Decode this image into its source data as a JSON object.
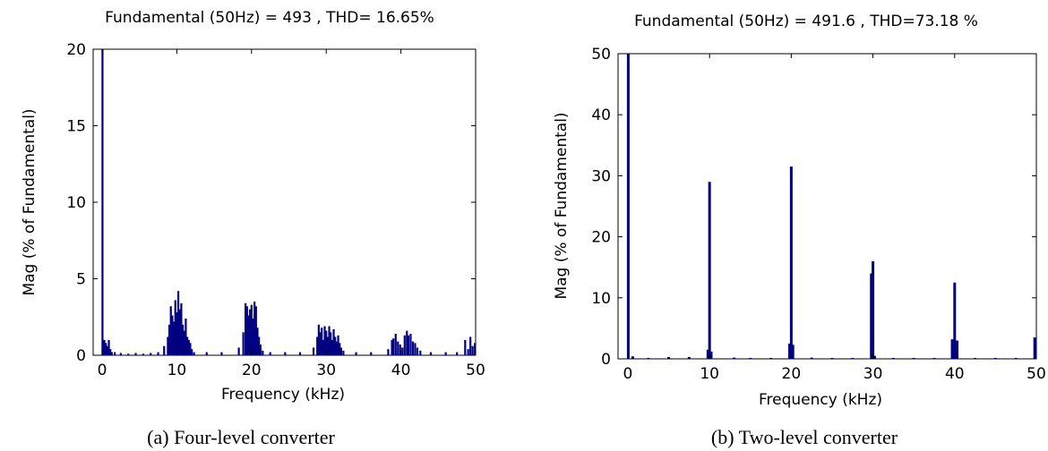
{
  "chart_data": [
    {
      "type": "bar",
      "title": "Fundamental (50Hz) = 493 , THD= 16.65%",
      "xlabel": "Frequency (kHz)",
      "ylabel": "Mag (% of Fundamental)",
      "caption": "(a) Four-level converter",
      "xlim": [
        -1.2,
        50
      ],
      "ylim": [
        0,
        20
      ],
      "xticks": [
        0,
        10,
        20,
        30,
        40,
        50
      ],
      "yticks": [
        0,
        5,
        10,
        15,
        20
      ],
      "grid": false,
      "color": "#000080",
      "series": [
        {
          "x": [
            0.05,
            0.3,
            0.5,
            0.7,
            0.9,
            1.1,
            1.3,
            1.7,
            2.5,
            3.5,
            4.5,
            5.5,
            6.5,
            7.5,
            8.3,
            8.8,
            9.0,
            9.2,
            9.4,
            9.6,
            9.8,
            10.0,
            10.2,
            10.4,
            10.6,
            10.8,
            11.0,
            11.2,
            11.4,
            11.6,
            11.8,
            12.0,
            12.3,
            14.0,
            16.0,
            18.3,
            18.9,
            19.2,
            19.4,
            19.6,
            19.8,
            20.0,
            20.2,
            20.4,
            20.6,
            20.8,
            21.0,
            21.2,
            21.5,
            22.5,
            24.5,
            26.5,
            28.3,
            28.8,
            29.0,
            29.2,
            29.4,
            29.6,
            29.8,
            30.0,
            30.2,
            30.4,
            30.6,
            30.8,
            31.0,
            31.2,
            31.4,
            31.6,
            31.8,
            32.0,
            32.3,
            34.0,
            36.0,
            38.3,
            38.8,
            39.0,
            39.3,
            39.6,
            39.9,
            40.2,
            40.5,
            40.8,
            41.0,
            41.3,
            41.6,
            41.9,
            42.2,
            42.6,
            44.0,
            46.0,
            47.5,
            48.6,
            49.0,
            49.3,
            49.6,
            49.9
          ],
          "values": [
            20,
            1.0,
            0.8,
            0.6,
            1.0,
            0.4,
            0.2,
            0.2,
            0.15,
            0.1,
            0.15,
            0.1,
            0.15,
            0.2,
            0.6,
            1.2,
            2.0,
            3.2,
            2.6,
            2.2,
            3.6,
            2.8,
            4.2,
            3.0,
            3.4,
            2.0,
            1.6,
            2.4,
            1.2,
            1.0,
            0.8,
            0.4,
            0.2,
            0.2,
            0.2,
            0.5,
            1.5,
            3.4,
            3.2,
            2.6,
            3.0,
            3.3,
            2.4,
            3.5,
            3.2,
            1.8,
            1.2,
            0.7,
            0.3,
            0.2,
            0.2,
            0.2,
            0.5,
            1.2,
            2.0,
            1.5,
            1.8,
            1.0,
            1.9,
            1.6,
            1.2,
            1.9,
            1.5,
            1.0,
            1.7,
            1.2,
            0.9,
            1.3,
            0.8,
            0.5,
            0.3,
            0.2,
            0.2,
            0.4,
            1.0,
            1.1,
            1.4,
            0.9,
            0.7,
            0.5,
            1.3,
            1.6,
            1.3,
            1.4,
            0.9,
            0.8,
            0.5,
            0.3,
            0.2,
            0.2,
            0.2,
            1.0,
            0.4,
            1.2,
            0.6,
            0.8
          ]
        }
      ]
    },
    {
      "type": "bar",
      "title": "Fundamental (50Hz) = 491.6 , THD=73.18 %",
      "xlabel": "Frequency (kHz)",
      "ylabel": "Mag (% of Fundamental)",
      "caption": "(b) Two-level converter",
      "xlim": [
        -1.2,
        50
      ],
      "ylim": [
        0,
        50
      ],
      "xticks": [
        0,
        10,
        20,
        30,
        40,
        50
      ],
      "yticks": [
        0,
        10,
        20,
        30,
        40,
        50
      ],
      "grid": false,
      "color": "#000080",
      "series": [
        {
          "x": [
            0.05,
            0.6,
            2.5,
            5.0,
            7.5,
            9.8,
            10.0,
            10.2,
            13.0,
            15.0,
            17.5,
            19.8,
            20.0,
            20.2,
            22.5,
            25.0,
            27.5,
            29.8,
            30.0,
            30.2,
            32.5,
            35.0,
            37.5,
            39.7,
            40.0,
            40.3,
            42.5,
            45.0,
            47.5,
            49.8
          ],
          "values": [
            50,
            0.4,
            0.15,
            0.3,
            0.3,
            1.5,
            29.0,
            1.2,
            0.2,
            0.15,
            0.15,
            2.5,
            31.5,
            2.3,
            0.2,
            0.15,
            0.15,
            14.0,
            16.0,
            0.5,
            0.15,
            0.15,
            0.15,
            3.2,
            12.5,
            3.0,
            0.15,
            0.15,
            0.15,
            3.5
          ]
        }
      ]
    }
  ]
}
